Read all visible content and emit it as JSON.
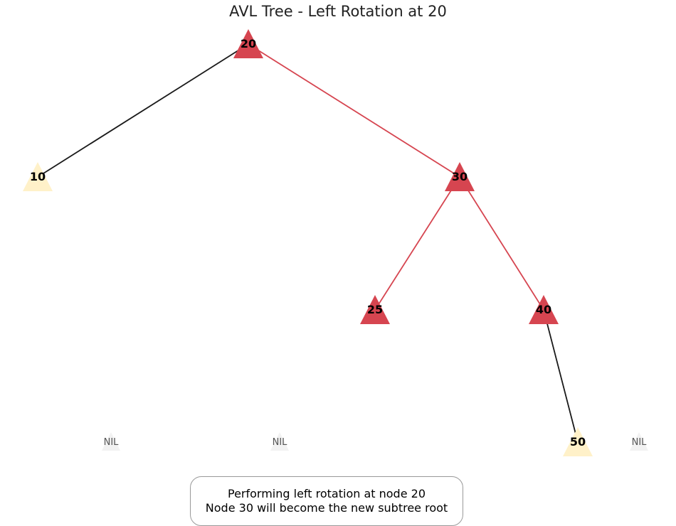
{
  "title": "AVL Tree - Left Rotation at 20",
  "colors": {
    "highlight_node": "#d64550",
    "normal_node": "#fff1c9",
    "highlight_edge": "#d64550",
    "normal_edge": "#1a1a1a",
    "nil_node": "#f2f2f2"
  },
  "nodes": [
    {
      "id": "20",
      "label": "20",
      "state": "highlight"
    },
    {
      "id": "10",
      "label": "10",
      "state": "normal"
    },
    {
      "id": "30",
      "label": "30",
      "state": "highlight"
    },
    {
      "id": "25",
      "label": "25",
      "state": "highlight"
    },
    {
      "id": "40",
      "label": "40",
      "state": "highlight"
    },
    {
      "id": "50",
      "label": "50",
      "state": "normal"
    }
  ],
  "nil_nodes": [
    {
      "id": "nil-1",
      "label": "NIL"
    },
    {
      "id": "nil-2",
      "label": "NIL"
    },
    {
      "id": "nil-3",
      "label": "NIL"
    }
  ],
  "edges": [
    {
      "from": "20",
      "to": "10",
      "state": "normal"
    },
    {
      "from": "20",
      "to": "30",
      "state": "highlight"
    },
    {
      "from": "30",
      "to": "25",
      "state": "highlight"
    },
    {
      "from": "30",
      "to": "40",
      "state": "highlight"
    },
    {
      "from": "40",
      "to": "50",
      "state": "normal"
    }
  ],
  "caption": {
    "line1": "Performing left rotation at node 20",
    "line2": "Node 30 will become the new subtree root"
  }
}
